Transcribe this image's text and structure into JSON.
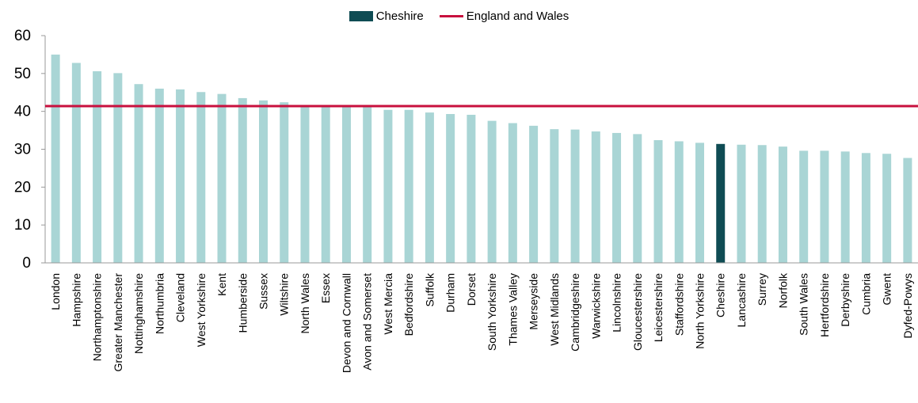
{
  "chart_data": {
    "type": "bar",
    "categories": [
      "London",
      "Hampshire",
      "Northamptonshire",
      "Greater Manchester",
      "Nottinghamshire",
      "Northumbria",
      "Cleveland",
      "West Yorkshire",
      "Kent",
      "Humberside",
      "Sussex",
      "Wiltshire",
      "North Wales",
      "Essex",
      "Devon and Cornwall",
      "Avon and Somerset",
      "West Mercia",
      "Bedfordshire",
      "Suffolk",
      "Durham",
      "Dorset",
      "South Yorkshire",
      "Thames Valley",
      "Merseyside",
      "West Midlands",
      "Cambridgeshire",
      "Warwickshire",
      "Lincolnshire",
      "Gloucestershire",
      "Leicestershire",
      "Staffordshire",
      "North Yorkshire",
      "Cheshire",
      "Lancashire",
      "Surrey",
      "Norfolk",
      "South Wales",
      "Hertfordshire",
      "Derbyshire",
      "Cumbria",
      "Gwent",
      "Dyfed-Powys"
    ],
    "values": [
      55.0,
      52.8,
      50.6,
      50.1,
      47.2,
      46.0,
      45.8,
      45.1,
      44.6,
      43.5,
      42.9,
      42.4,
      41.4,
      41.3,
      41.3,
      41.2,
      40.4,
      40.4,
      39.7,
      39.3,
      39.1,
      37.5,
      36.9,
      36.2,
      35.3,
      35.2,
      34.7,
      34.3,
      34.0,
      32.4,
      32.1,
      31.7,
      31.4,
      31.2,
      31.1,
      30.7,
      29.6,
      29.6,
      29.4,
      29.0,
      28.8,
      27.7
    ],
    "highlight": "Cheshire",
    "reference_line": {
      "name": "England and Wales",
      "value": 41.4
    },
    "ylim": [
      0,
      60
    ],
    "yticks": [
      "0",
      "10",
      "20",
      "30",
      "40",
      "50",
      "60"
    ],
    "xlabel": "",
    "ylabel": "",
    "title": "",
    "grid": false,
    "legend_position": "top-center",
    "colors": {
      "bar": "#a9d5d5",
      "highlight_bar": "#0f4c54",
      "reference_line": "#c8103e",
      "axis": "#999999"
    }
  },
  "legend": {
    "items": [
      {
        "label": "Cheshire",
        "kind": "bar",
        "color": "#0f4c54"
      },
      {
        "label": "England and Wales",
        "kind": "line",
        "color": "#c8103e"
      }
    ]
  }
}
